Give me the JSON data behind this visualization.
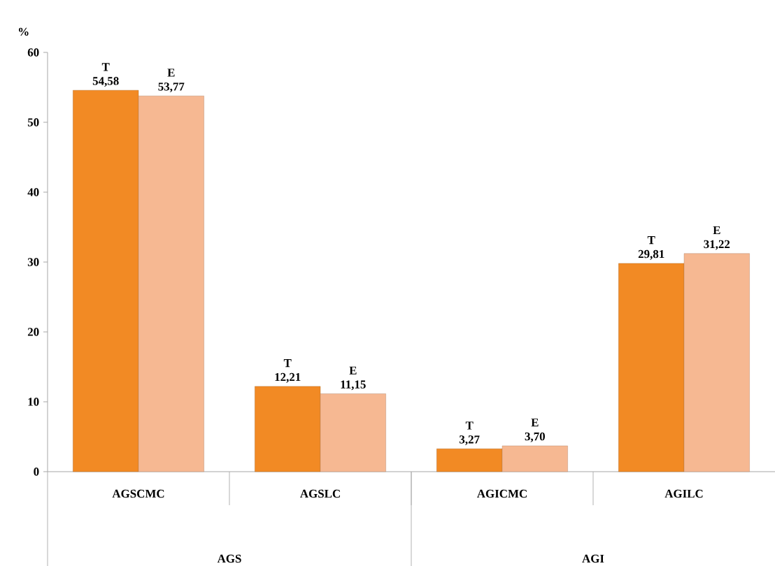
{
  "chart_data": {
    "type": "bar",
    "ylabel": "%",
    "categories": [
      "AGSCMC",
      "AGSLC",
      "AGICMC",
      "AGILC"
    ],
    "series": [
      {
        "name": "T",
        "color": "#f28a24",
        "values": [
          54.58,
          12.21,
          3.27,
          29.81
        ],
        "value_labels": [
          "54,58",
          "12,21",
          "3,27",
          "29,81"
        ]
      },
      {
        "name": "E",
        "color": "#f6b892",
        "values": [
          53.77,
          11.15,
          3.7,
          31.22
        ],
        "value_labels": [
          "53,77",
          "11,15",
          "3,70",
          "31,22"
        ]
      }
    ],
    "ylim": [
      0,
      60
    ],
    "yticks": [
      0,
      10,
      20,
      30,
      40,
      50,
      60
    ],
    "grid": false,
    "annotations": [
      "AGS",
      "AGI"
    ]
  }
}
